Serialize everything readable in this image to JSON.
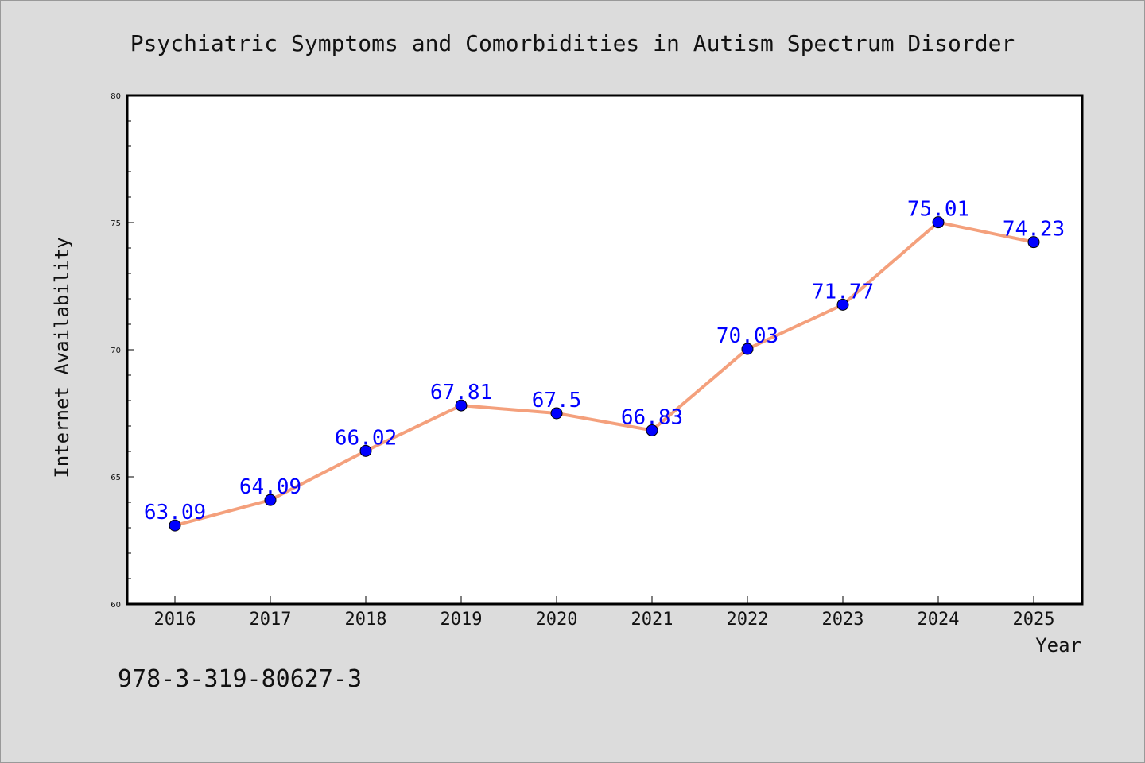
{
  "chart_data": {
    "type": "line",
    "title": "Psychiatric Symptoms and Comorbidities in Autism Spectrum Disorder",
    "xlabel": "Year",
    "ylabel": "Internet Availability",
    "x": [
      "2016",
      "2017",
      "2018",
      "2019",
      "2020",
      "2021",
      "2022",
      "2023",
      "2024",
      "2025"
    ],
    "values": [
      63.09,
      64.09,
      66.02,
      67.81,
      67.5,
      66.83,
      70.03,
      71.77,
      75.01,
      74.23
    ],
    "data_labels": [
      "63.09",
      "64.09",
      "66.02",
      "67.81",
      "67.5",
      "66.83",
      "70.03",
      "71.77",
      "75.01",
      "74.23"
    ],
    "ylim": [
      60,
      80
    ],
    "yticks": [
      "60",
      "65",
      "70",
      "75",
      "80"
    ],
    "grid": false,
    "line_color": "#f4a07c",
    "marker_color": "#0000ff",
    "label_color": "#0000ff"
  },
  "footer": {
    "code": "978-3-319-80627-3"
  }
}
